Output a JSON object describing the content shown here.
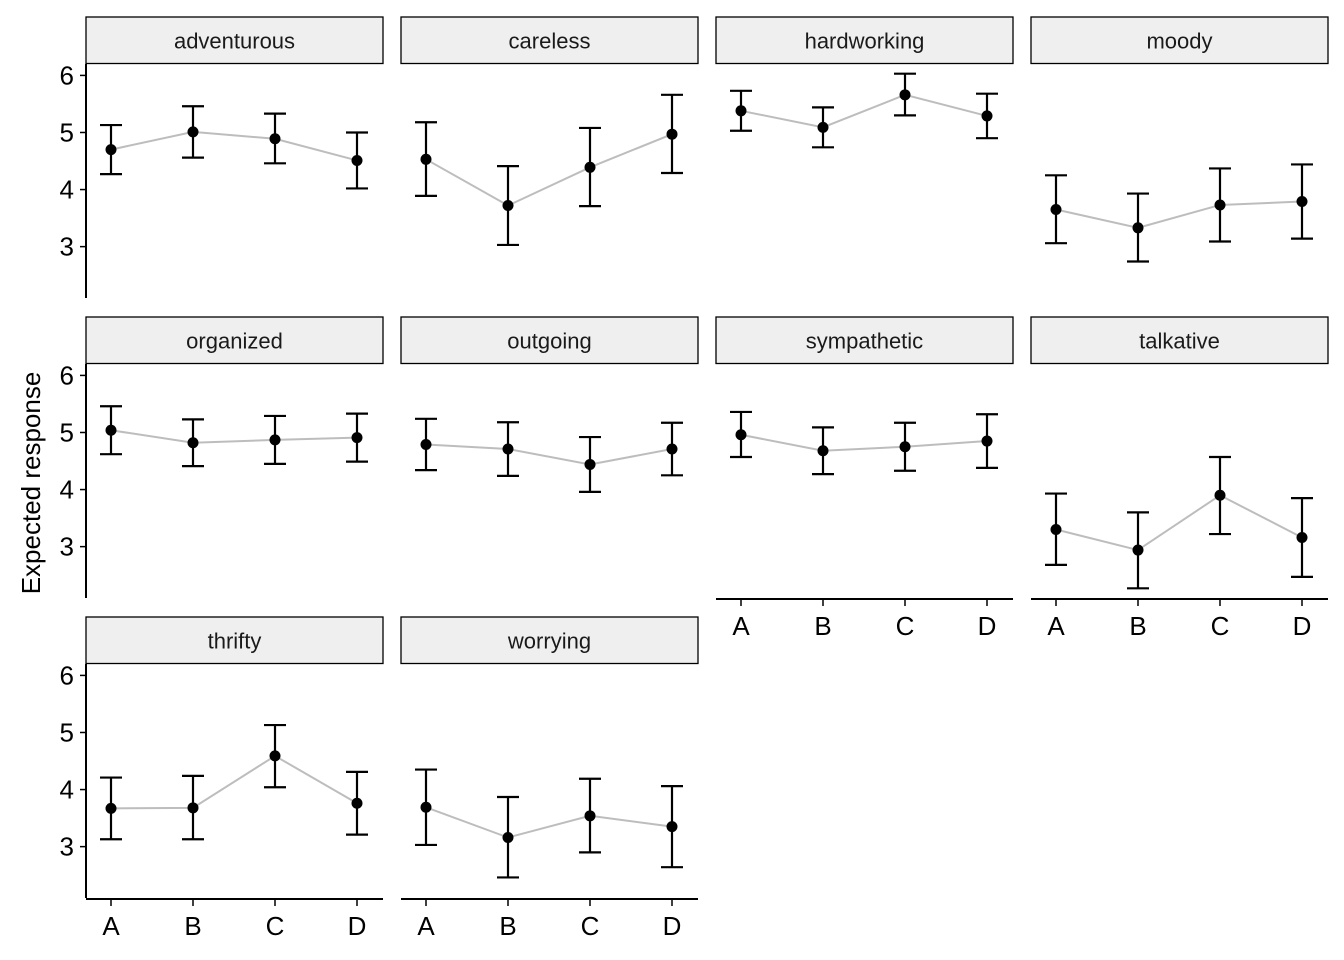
{
  "chart_data": {
    "type": "line",
    "ylabel": "Expected response",
    "xlabel": "",
    "categories": [
      "A",
      "B",
      "C",
      "D"
    ],
    "ylim": [
      2.1,
      6.2
    ],
    "yticks": [
      3,
      4,
      5,
      6
    ],
    "grid": false,
    "colors": {
      "line": "#bdbdbd",
      "point": "#000000",
      "strip": "#efefef"
    },
    "panels": [
      {
        "name": "adventurous",
        "values": [
          4.7,
          5.01,
          4.89,
          4.51
        ],
        "lower": [
          4.27,
          4.56,
          4.46,
          4.02
        ],
        "upper": [
          5.13,
          5.46,
          5.33,
          5.0
        ]
      },
      {
        "name": "careless",
        "values": [
          4.53,
          3.72,
          4.39,
          4.97
        ],
        "lower": [
          3.89,
          3.03,
          3.71,
          4.29
        ],
        "upper": [
          5.18,
          4.41,
          5.08,
          5.66
        ]
      },
      {
        "name": "hardworking",
        "values": [
          5.38,
          5.09,
          5.66,
          5.29
        ],
        "lower": [
          5.03,
          4.74,
          5.3,
          4.9
        ],
        "upper": [
          5.73,
          5.44,
          6.03,
          5.68
        ]
      },
      {
        "name": "moody",
        "values": [
          3.65,
          3.33,
          3.73,
          3.79
        ],
        "lower": [
          3.06,
          2.74,
          3.09,
          3.14
        ],
        "upper": [
          4.25,
          3.93,
          4.37,
          4.44
        ]
      },
      {
        "name": "organized",
        "values": [
          5.04,
          4.82,
          4.87,
          4.91
        ],
        "lower": [
          4.62,
          4.41,
          4.45,
          4.49
        ],
        "upper": [
          5.46,
          5.23,
          5.29,
          5.33
        ]
      },
      {
        "name": "outgoing",
        "values": [
          4.79,
          4.71,
          4.44,
          4.71
        ],
        "lower": [
          4.34,
          4.24,
          3.96,
          4.25
        ],
        "upper": [
          5.24,
          5.18,
          4.92,
          5.17
        ]
      },
      {
        "name": "sympathetic",
        "values": [
          4.96,
          4.68,
          4.75,
          4.85
        ],
        "lower": [
          4.57,
          4.27,
          4.33,
          4.38
        ],
        "upper": [
          5.36,
          5.09,
          5.17,
          5.32
        ]
      },
      {
        "name": "talkative",
        "values": [
          3.3,
          2.94,
          3.9,
          3.16
        ],
        "lower": [
          2.68,
          2.27,
          3.22,
          2.47
        ],
        "upper": [
          3.93,
          3.6,
          4.57,
          3.85
        ]
      },
      {
        "name": "thrifty",
        "values": [
          3.67,
          3.68,
          4.59,
          3.76
        ],
        "lower": [
          3.13,
          3.13,
          4.04,
          3.21
        ],
        "upper": [
          4.21,
          4.24,
          5.13,
          4.31
        ]
      },
      {
        "name": "worrying",
        "values": [
          3.69,
          3.16,
          3.54,
          3.35
        ],
        "lower": [
          3.03,
          2.46,
          2.9,
          2.64
        ],
        "upper": [
          4.35,
          3.87,
          4.19,
          4.06
        ]
      }
    ]
  }
}
